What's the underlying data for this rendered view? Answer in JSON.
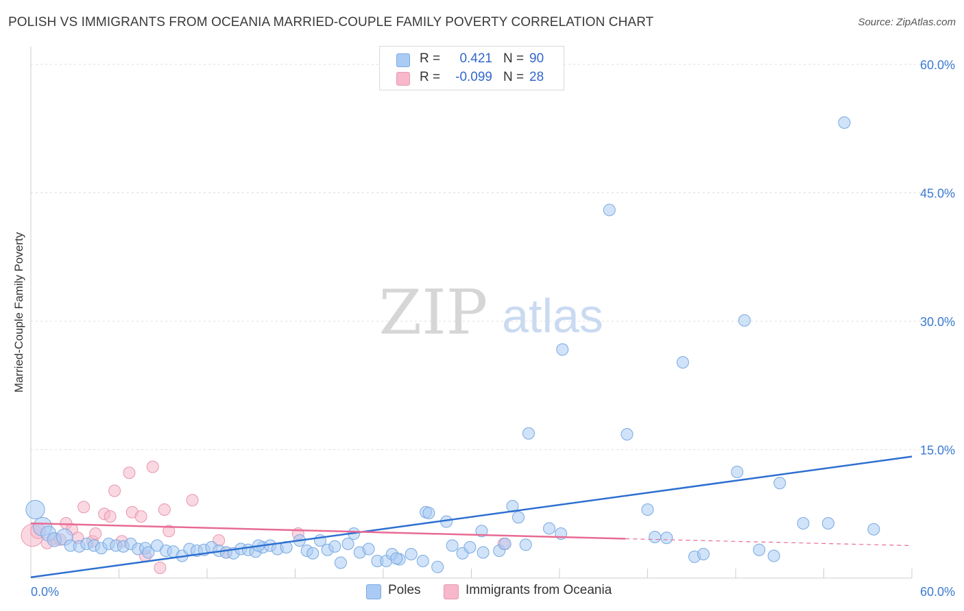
{
  "header": {
    "title": "POLISH VS IMMIGRANTS FROM OCEANIA MARRIED-COUPLE FAMILY POVERTY CORRELATION CHART",
    "source": "Source: ZipAtlas.com"
  },
  "watermark": {
    "zip": "ZIP",
    "atlas": "atlas"
  },
  "legend": {
    "rows": [
      {
        "r_label": "R =",
        "r_value": "0.421",
        "n_label": "N =",
        "n_value": "90"
      },
      {
        "r_label": "R =",
        "r_value": "-0.099",
        "n_label": "N =",
        "n_value": "28"
      }
    ],
    "bottom": [
      {
        "label": "Poles"
      },
      {
        "label": "Immigrants from Oceania"
      }
    ]
  },
  "colors": {
    "poles_fill": "#aaccf4",
    "poles_stroke": "#7aa8e0",
    "poles_line": "#2d6fd0",
    "oceania_fill": "#f6b8ca",
    "oceania_stroke": "#e896ad",
    "oceania_line": "#e86a92",
    "grid": "#dddddd",
    "tick_label": "#3a7ad0"
  },
  "chart_data": {
    "type": "scatter",
    "title": "POLISH VS IMMIGRANTS FROM OCEANIA MARRIED-COUPLE FAMILY POVERTY CORRELATION CHART",
    "xlabel": "",
    "ylabel": "Married-Couple Family Poverty",
    "xlim": [
      0,
      60
    ],
    "ylim": [
      0,
      60
    ],
    "x_tick_labels": [
      {
        "value": 0,
        "label": "0.0%"
      },
      {
        "value": 60,
        "label": "60.0%"
      }
    ],
    "y_tick_labels": [
      {
        "value": 15,
        "label": "15.0%"
      },
      {
        "value": 30,
        "label": "30.0%"
      },
      {
        "value": 45,
        "label": "45.0%"
      },
      {
        "value": 60,
        "label": "60.0%"
      }
    ],
    "series": [
      {
        "name": "Poles",
        "r": 0.421,
        "n": 90,
        "trend": {
          "x0": 0,
          "y0": 0.1,
          "x1": 60,
          "y1": 14.2
        },
        "points": [
          {
            "x": 0.3,
            "y": 8,
            "s": 1.6
          },
          {
            "x": 0.8,
            "y": 6,
            "s": 1.6
          },
          {
            "x": 1.2,
            "y": 5.2,
            "s": 1.3
          },
          {
            "x": 1.6,
            "y": 4.5,
            "s": 1.2
          },
          {
            "x": 2.3,
            "y": 4.8,
            "s": 1.4
          },
          {
            "x": 2.7,
            "y": 3.8,
            "s": 1
          },
          {
            "x": 3.3,
            "y": 3.7,
            "s": 1
          },
          {
            "x": 3.8,
            "y": 4
          },
          {
            "x": 4.3,
            "y": 3.8
          },
          {
            "x": 4.8,
            "y": 3.5
          },
          {
            "x": 5.3,
            "y": 4
          },
          {
            "x": 5.8,
            "y": 3.8
          },
          {
            "x": 6.3,
            "y": 3.7
          },
          {
            "x": 6.8,
            "y": 4
          },
          {
            "x": 7.3,
            "y": 3.4
          },
          {
            "x": 7.8,
            "y": 3.5
          },
          {
            "x": 8.0,
            "y": 3
          },
          {
            "x": 8.6,
            "y": 3.8
          },
          {
            "x": 9.2,
            "y": 3.2
          },
          {
            "x": 9.7,
            "y": 3.1
          },
          {
            "x": 10.3,
            "y": 2.6
          },
          {
            "x": 10.8,
            "y": 3.4
          },
          {
            "x": 11.3,
            "y": 3.2
          },
          {
            "x": 11.8,
            "y": 3.3
          },
          {
            "x": 12.3,
            "y": 3.6
          },
          {
            "x": 12.8,
            "y": 3.2
          },
          {
            "x": 13.3,
            "y": 3.0
          },
          {
            "x": 13.8,
            "y": 2.9
          },
          {
            "x": 14.3,
            "y": 3.4
          },
          {
            "x": 14.8,
            "y": 3.3
          },
          {
            "x": 15.3,
            "y": 3.1
          },
          {
            "x": 15.8,
            "y": 3.6
          },
          {
            "x": 16.3,
            "y": 3.8
          },
          {
            "x": 16.8,
            "y": 3.4
          },
          {
            "x": 17.4,
            "y": 3.6
          },
          {
            "x": 18.3,
            "y": 4.4
          },
          {
            "x": 18.8,
            "y": 3.2
          },
          {
            "x": 19.2,
            "y": 2.9
          },
          {
            "x": 19.7,
            "y": 4.4
          },
          {
            "x": 20.2,
            "y": 3.3
          },
          {
            "x": 20.7,
            "y": 3.7
          },
          {
            "x": 21.1,
            "y": 1.8
          },
          {
            "x": 21.6,
            "y": 4
          },
          {
            "x": 22.0,
            "y": 5.2
          },
          {
            "x": 22.4,
            "y": 3
          },
          {
            "x": 23.0,
            "y": 3.4
          },
          {
            "x": 23.6,
            "y": 2
          },
          {
            "x": 24.2,
            "y": 2
          },
          {
            "x": 24.6,
            "y": 2.8
          },
          {
            "x": 25.1,
            "y": 2.2
          },
          {
            "x": 25.9,
            "y": 2.8
          },
          {
            "x": 26.7,
            "y": 2.0
          },
          {
            "x": 26.9,
            "y": 7.7
          },
          {
            "x": 27.1,
            "y": 7.6
          },
          {
            "x": 27.7,
            "y": 1.3
          },
          {
            "x": 28.3,
            "y": 6.6
          },
          {
            "x": 28.7,
            "y": 3.8
          },
          {
            "x": 29.4,
            "y": 2.9
          },
          {
            "x": 29.9,
            "y": 3.6
          },
          {
            "x": 30.8,
            "y": 3.0
          },
          {
            "x": 31.9,
            "y": 3.2
          },
          {
            "x": 32.3,
            "y": 4.0
          },
          {
            "x": 32.8,
            "y": 8.4
          },
          {
            "x": 33.2,
            "y": 7.1
          },
          {
            "x": 33.7,
            "y": 3.9
          },
          {
            "x": 35.3,
            "y": 5.8
          },
          {
            "x": 36.1,
            "y": 5.2
          },
          {
            "x": 33.9,
            "y": 16.9
          },
          {
            "x": 36.2,
            "y": 26.7
          },
          {
            "x": 39.4,
            "y": 43
          },
          {
            "x": 40.6,
            "y": 16.8
          },
          {
            "x": 42.0,
            "y": 8
          },
          {
            "x": 42.5,
            "y": 4.8
          },
          {
            "x": 43.3,
            "y": 4.7
          },
          {
            "x": 44.4,
            "y": 25.2
          },
          {
            "x": 45.2,
            "y": 2.5
          },
          {
            "x": 45.8,
            "y": 2.8
          },
          {
            "x": 48.1,
            "y": 12.4
          },
          {
            "x": 48.6,
            "y": 30.1
          },
          {
            "x": 49.6,
            "y": 3.3
          },
          {
            "x": 50.6,
            "y": 2.6
          },
          {
            "x": 51.0,
            "y": 11.1
          },
          {
            "x": 52.6,
            "y": 6.4
          },
          {
            "x": 54.3,
            "y": 6.4
          },
          {
            "x": 55.4,
            "y": 53.2
          },
          {
            "x": 57.4,
            "y": 5.7
          },
          {
            "x": 24.9,
            "y": 2.3
          },
          {
            "x": 30.7,
            "y": 5.5
          },
          {
            "x": 15.5,
            "y": 3.8
          }
        ]
      },
      {
        "name": "Immigrants from Oceania",
        "r": -0.099,
        "n": 28,
        "trend": {
          "x0": 0,
          "y0": 6.4,
          "x1": 40.5,
          "y1": 4.6,
          "dash_x1": 60,
          "dash_y1": 3.8
        },
        "points": [
          {
            "x": 0.1,
            "y": 5,
            "s": 1.9
          },
          {
            "x": 0.5,
            "y": 5.5,
            "s": 1.3
          },
          {
            "x": 1.1,
            "y": 4.1
          },
          {
            "x": 1.6,
            "y": 4.6
          },
          {
            "x": 2.0,
            "y": 4.5
          },
          {
            "x": 2.4,
            "y": 6.4
          },
          {
            "x": 2.8,
            "y": 5.7
          },
          {
            "x": 3.2,
            "y": 4.7
          },
          {
            "x": 3.6,
            "y": 8.3
          },
          {
            "x": 4.2,
            "y": 4.3
          },
          {
            "x": 4.4,
            "y": 5.2
          },
          {
            "x": 5.0,
            "y": 7.5
          },
          {
            "x": 5.4,
            "y": 7.2
          },
          {
            "x": 5.7,
            "y": 10.2
          },
          {
            "x": 6.2,
            "y": 4.3
          },
          {
            "x": 6.7,
            "y": 12.3
          },
          {
            "x": 6.9,
            "y": 7.7
          },
          {
            "x": 7.5,
            "y": 7.2
          },
          {
            "x": 7.8,
            "y": 2.6
          },
          {
            "x": 8.3,
            "y": 13
          },
          {
            "x": 8.8,
            "y": 1.2
          },
          {
            "x": 9.1,
            "y": 8
          },
          {
            "x": 9.4,
            "y": 5.5
          },
          {
            "x": 11.0,
            "y": 9.1
          },
          {
            "x": 12.8,
            "y": 4.4
          },
          {
            "x": 13.3,
            "y": 3.0
          },
          {
            "x": 18.2,
            "y": 5.2
          },
          {
            "x": 32.2,
            "y": 4
          }
        ]
      }
    ]
  }
}
